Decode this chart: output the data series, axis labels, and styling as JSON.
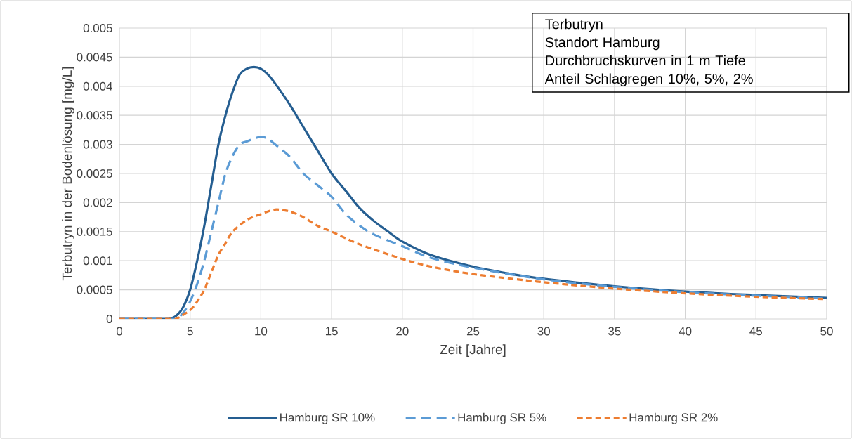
{
  "chart_data": {
    "type": "line",
    "title": "Terbutryn",
    "annotations": [
      "Standort Hamburg",
      "Durchbruchskurven in 1 m Tiefe",
      "Anteil Schlagregen 10%, 5%, 2%"
    ],
    "xlabel": "Zeit [Jahre]",
    "ylabel": "Terbutryn in der Bodenlösung [mg/L]",
    "xlim": [
      0,
      50
    ],
    "xticks": [
      0,
      5,
      10,
      15,
      20,
      25,
      30,
      35,
      40,
      45,
      50
    ],
    "ylim": [
      0,
      0.005
    ],
    "yticks": [
      0,
      0.0005,
      0.001,
      0.0015,
      0.002,
      0.0025,
      0.003,
      0.0035,
      0.004,
      0.0045,
      0.005
    ],
    "grid": true,
    "legend": "bottom",
    "marker": "none",
    "series": [
      {
        "name": "Hamburg SR 10%",
        "color": "#255e91",
        "line_style": "solid",
        "x": [
          0,
          3,
          3.5,
          4,
          4.5,
          5,
          5.5,
          6,
          6.5,
          7,
          7.5,
          8,
          8.5,
          9,
          9.5,
          10,
          10.5,
          11,
          12,
          13,
          14,
          15,
          16,
          17,
          18,
          19,
          20,
          22,
          25,
          28,
          30,
          35,
          40,
          45,
          50
        ],
        "values": [
          0,
          0,
          0,
          5e-05,
          0.0002,
          0.0005,
          0.001,
          0.0016,
          0.0023,
          0.003,
          0.0035,
          0.0039,
          0.0042,
          0.0043,
          0.00433,
          0.0043,
          0.0042,
          0.00405,
          0.0037,
          0.0033,
          0.0029,
          0.0025,
          0.0022,
          0.0019,
          0.00168,
          0.0015,
          0.00133,
          0.0011,
          0.0009,
          0.00076,
          0.00069,
          0.00056,
          0.00047,
          0.00041,
          0.00036
        ]
      },
      {
        "name": "Hamburg SR 5%",
        "color": "#5b9bd5",
        "line_style": "dashed",
        "x": [
          0,
          3.5,
          4,
          4.5,
          5,
          5.5,
          6,
          6.5,
          7,
          7.5,
          8,
          8.5,
          9,
          9.5,
          10,
          10.5,
          11,
          12,
          13,
          14,
          15,
          16,
          17,
          18,
          20,
          22,
          25,
          30,
          35,
          40,
          45,
          50
        ],
        "values": [
          0,
          0,
          0,
          0.0001,
          0.0003,
          0.0006,
          0.001,
          0.0015,
          0.002,
          0.0025,
          0.0028,
          0.003,
          0.00305,
          0.0031,
          0.00313,
          0.0031,
          0.003,
          0.0028,
          0.0025,
          0.0023,
          0.0021,
          0.0018,
          0.0016,
          0.00145,
          0.00125,
          0.00105,
          0.00088,
          0.00068,
          0.00055,
          0.00046,
          0.0004,
          0.00035
        ]
      },
      {
        "name": "Hamburg SR 2%",
        "color": "#ed7d31",
        "line_style": "dashed",
        "x": [
          0,
          3.5,
          4,
          5,
          5.5,
          6,
          6.5,
          7,
          7.5,
          8,
          9,
          10,
          11,
          12,
          13,
          14,
          15,
          17,
          20,
          22,
          25,
          30,
          35,
          40,
          45,
          50
        ],
        "values": [
          0,
          0,
          0,
          0.00015,
          0.0003,
          0.0005,
          0.0008,
          0.0011,
          0.0013,
          0.0015,
          0.0017,
          0.0018,
          0.00188,
          0.00185,
          0.00175,
          0.0016,
          0.0015,
          0.00128,
          0.00103,
          0.0009,
          0.00077,
          0.00063,
          0.00052,
          0.00044,
          0.00038,
          0.00034
        ]
      }
    ]
  }
}
